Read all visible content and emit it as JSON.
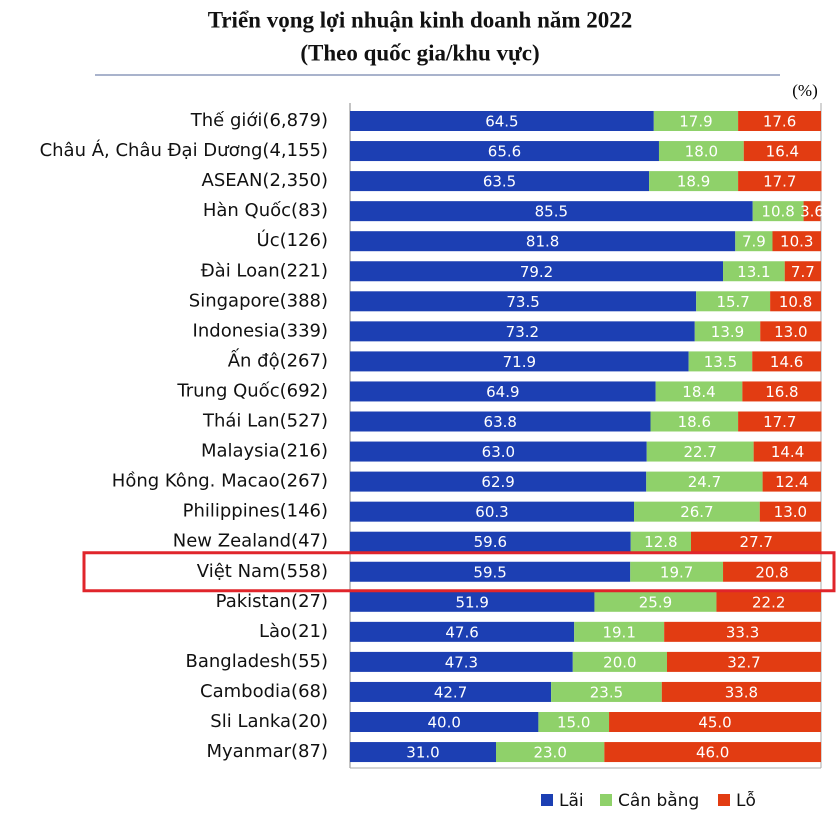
{
  "chart_data": {
    "type": "stacked-barh",
    "title": "Triển vọng lợi nhuận kinh doanh năm 2022",
    "subtitle": "(Theo quốc gia/khu vực)",
    "unit": "(%)",
    "categories": [
      "Thế giới(6,879)",
      "Châu Á, Châu Đại Dương(4,155)",
      "ASEAN(2,350)",
      "Hàn Quốc(83)",
      "Úc(126)",
      "Đài Loan(221)",
      "Singapore(388)",
      "Indonesia(339)",
      "Ấn độ(267)",
      "Trung Quốc(692)",
      "Thái Lan(527)",
      "Malaysia(216)",
      "Hồng Kông. Macao(267)",
      "Philippines(146)",
      "New Zealand(47)",
      "Việt Nam(558)",
      "Pakistan(27)",
      "Lào(21)",
      "Bangladesh(55)",
      "Cambodia(68)",
      "Sli Lanka(20)",
      "Myanmar(87)"
    ],
    "series": [
      {
        "name": "Lãi",
        "color": "#1c3fb3",
        "values": [
          64.5,
          65.6,
          63.5,
          85.5,
          81.8,
          79.2,
          73.5,
          73.2,
          71.9,
          64.9,
          63.8,
          63.0,
          62.9,
          60.3,
          59.6,
          59.5,
          51.9,
          47.6,
          47.3,
          42.7,
          40.0,
          31.0
        ],
        "value_labels": [
          "64.5",
          "65.6",
          "63.5",
          "85.5",
          "81.8",
          "79.2",
          "73.5",
          "73.2",
          "71.9",
          "64.9",
          "63.8",
          "63.0",
          "62.9",
          "60.3",
          "59.6",
          "59.5",
          "51.9",
          "47.6",
          "47.3",
          "42.7",
          "40.0",
          "31.0"
        ]
      },
      {
        "name": "Cân bằng",
        "color": "#8fd16a",
        "values": [
          17.9,
          18.0,
          18.9,
          10.8,
          7.9,
          13.1,
          15.7,
          13.9,
          13.5,
          18.4,
          18.6,
          22.7,
          24.7,
          26.7,
          12.8,
          19.7,
          25.9,
          19.1,
          20.0,
          23.5,
          15.0,
          23.0
        ],
        "value_labels": [
          "17.9",
          "18.0",
          "18.9",
          "10.8",
          "7.9",
          "13.1",
          "15.7",
          "13.9",
          "13.5",
          "18.4",
          "18.6",
          "22.7",
          "24.7",
          "26.7",
          "12.8",
          "19.7",
          "25.9",
          "19.1",
          "20.0",
          "23.5",
          "15.0",
          "23.0"
        ]
      },
      {
        "name": "Lỗ",
        "color": "#e23c12",
        "values": [
          17.6,
          16.4,
          17.7,
          3.6,
          10.3,
          7.7,
          10.8,
          13.0,
          14.6,
          16.8,
          17.7,
          14.4,
          12.4,
          13.0,
          27.7,
          20.8,
          22.2,
          33.3,
          32.7,
          33.8,
          45.0,
          46.0
        ],
        "value_labels": [
          "17.6",
          "16.4",
          "17.7",
          "3.6",
          "10.3",
          "7.7",
          "10.8",
          "13.0",
          "14.6",
          "16.8",
          "17.7",
          "14.4",
          "12.4",
          "13.0",
          "27.7",
          "20.8",
          "22.2",
          "33.3",
          "32.7",
          "33.8",
          "45.0",
          "46.0"
        ]
      }
    ],
    "xlim": [
      0,
      100
    ]
  }
}
